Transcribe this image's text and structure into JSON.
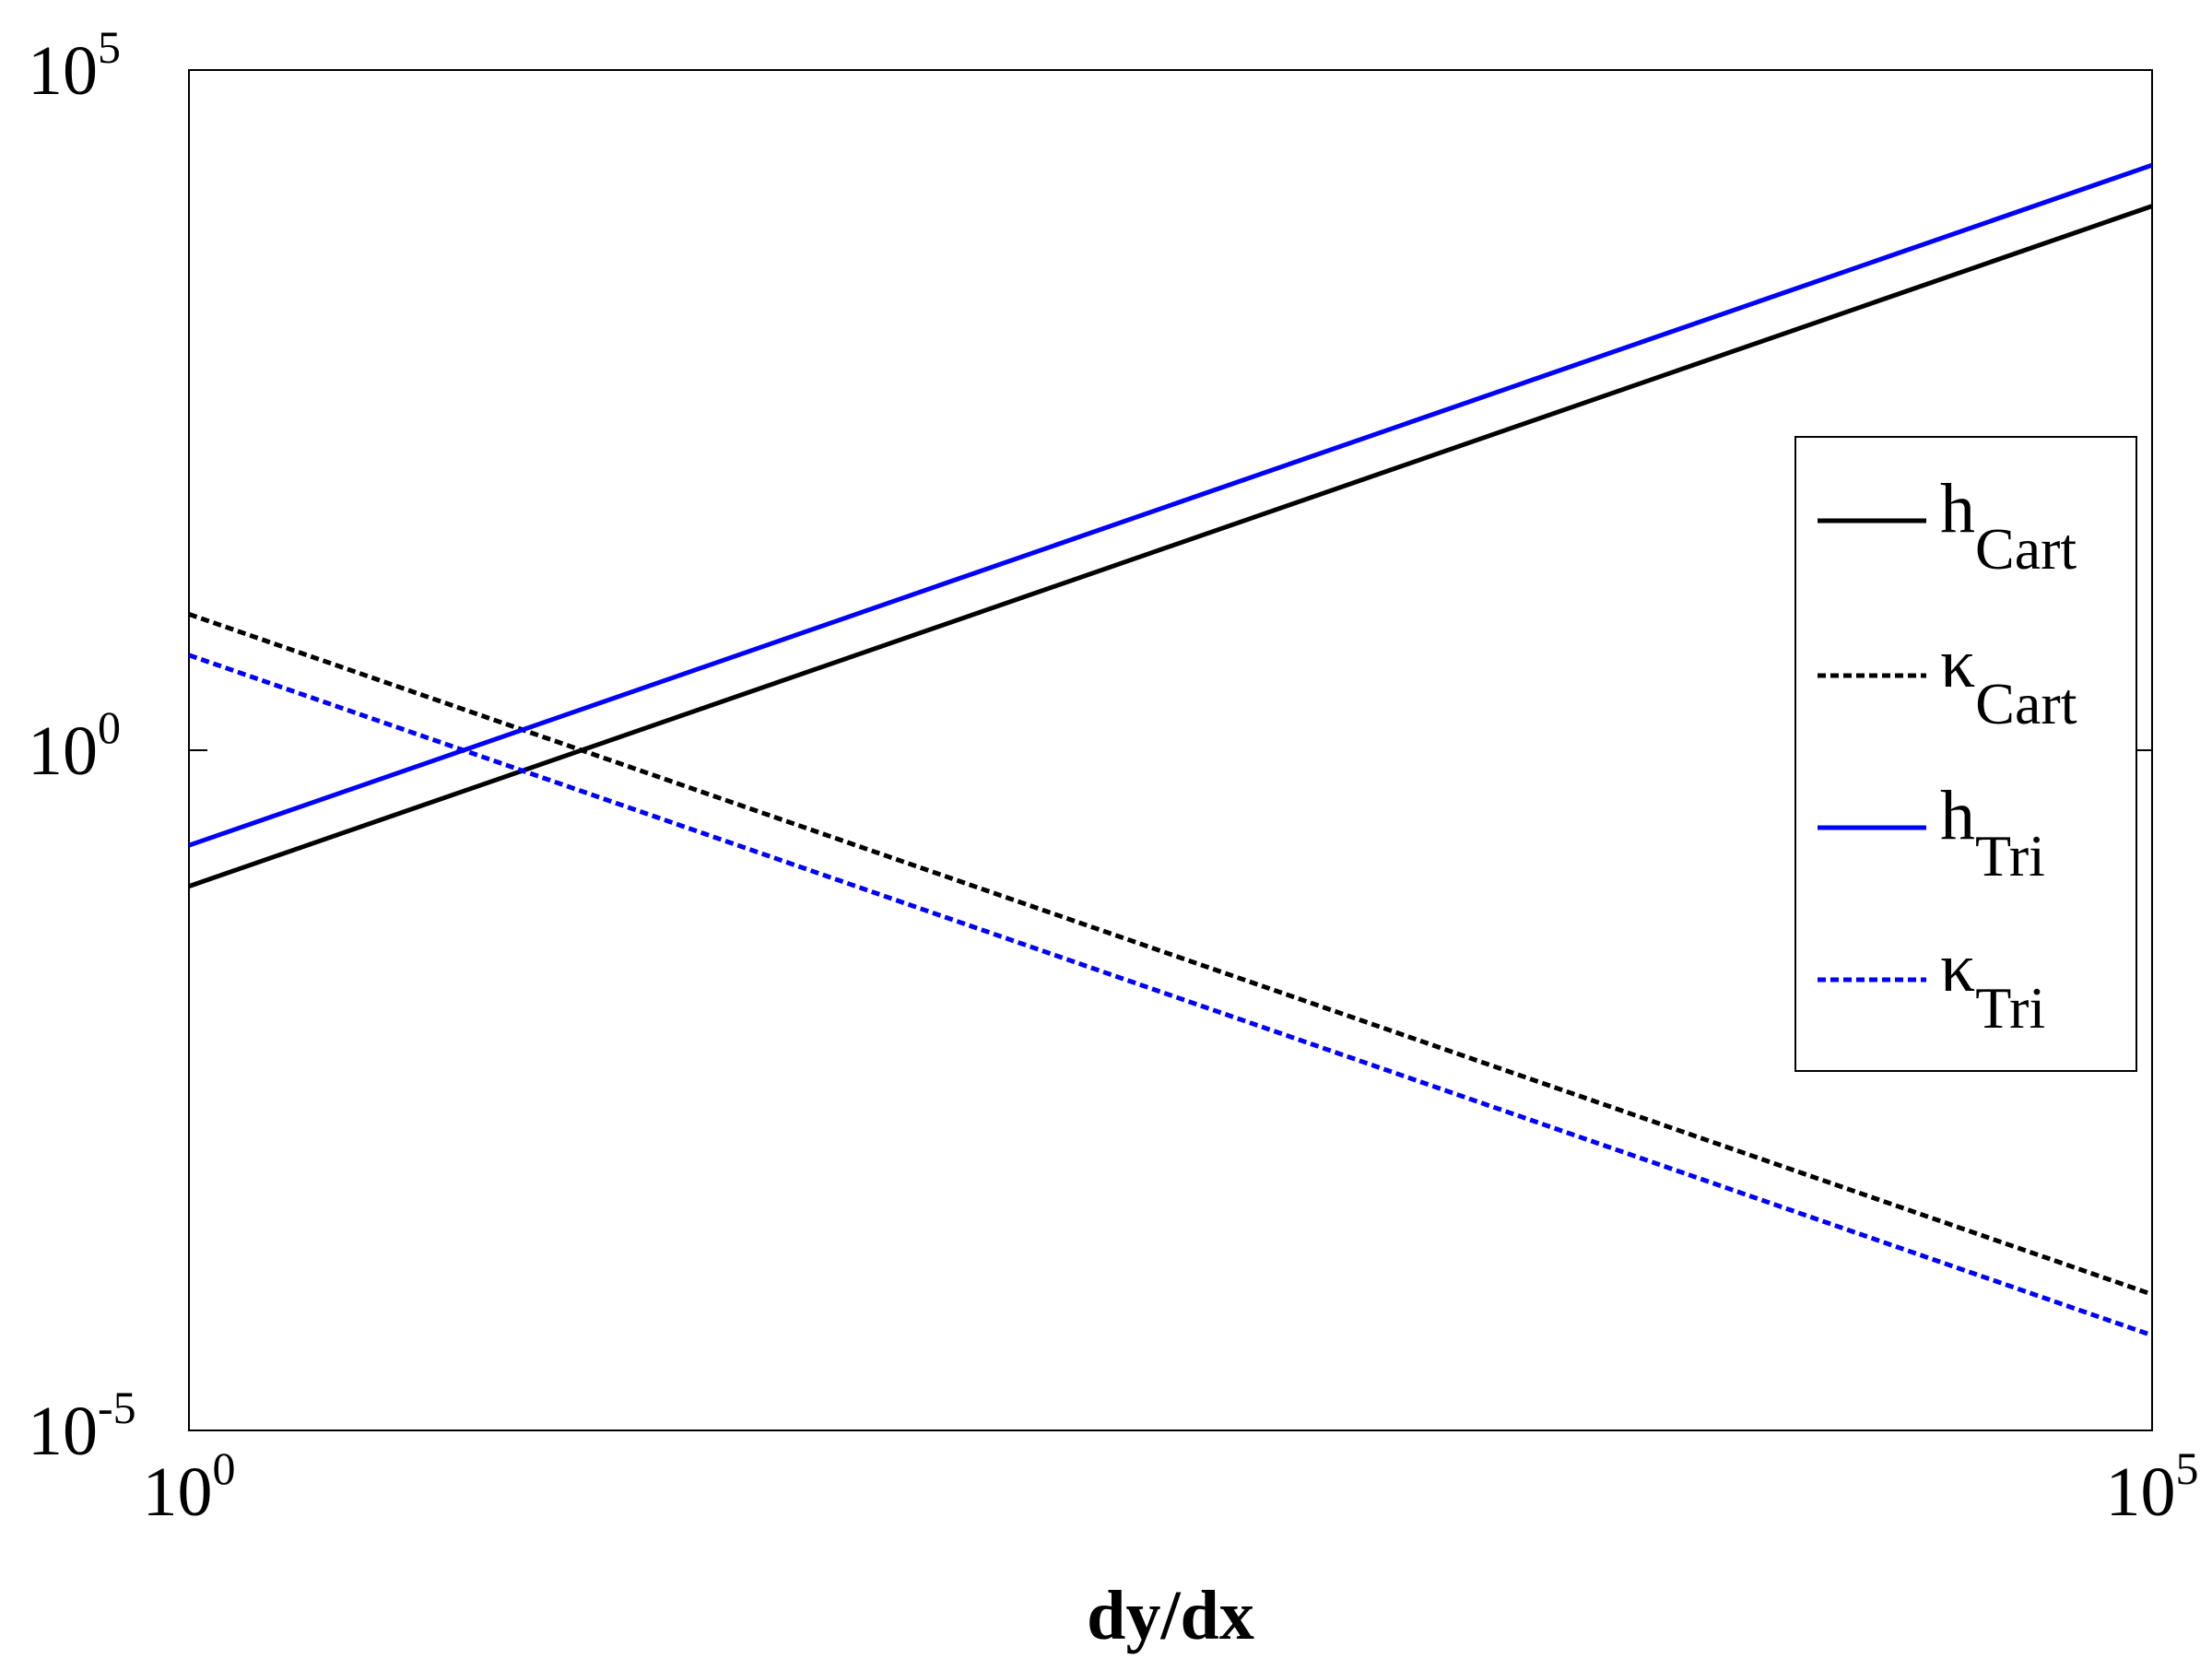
{
  "chart_data": {
    "type": "line",
    "x_scale": "log",
    "y_scale": "log",
    "xlabel": "dy/dx",
    "ylabel": "",
    "title": "",
    "xlim": [
      1,
      100000
    ],
    "ylim": [
      1e-05,
      100000
    ],
    "grid": false,
    "legend_position": "right",
    "x_ticks": [
      {
        "value": 1,
        "base": "10",
        "exp": "0"
      },
      {
        "value": 100000,
        "base": "10",
        "exp": "5"
      }
    ],
    "y_ticks": [
      {
        "value": 1e-05,
        "base": "10",
        "exp": "-5"
      },
      {
        "value": 1,
        "base": "10",
        "exp": "0"
      },
      {
        "value": 100000,
        "base": "10",
        "exp": "5"
      }
    ],
    "series": [
      {
        "name": "h",
        "sub": "Cart",
        "color": "#000000",
        "style": "solid",
        "x": [
          1,
          100000
        ],
        "y": [
          0.1,
          10000
        ]
      },
      {
        "name": "κ",
        "sub": "Cart",
        "color": "#000000",
        "style": "dotted",
        "x": [
          1,
          100000
        ],
        "y": [
          10,
          0.0001
        ]
      },
      {
        "name": "h",
        "sub": "Tri",
        "color": "#0000ff",
        "style": "solid",
        "x": [
          1,
          100000
        ],
        "y": [
          0.2,
          20000
        ]
      },
      {
        "name": "κ",
        "sub": "Tri",
        "color": "#0000ff",
        "style": "dotted",
        "x": [
          1,
          100000
        ],
        "y": [
          5,
          5e-05
        ]
      }
    ]
  }
}
